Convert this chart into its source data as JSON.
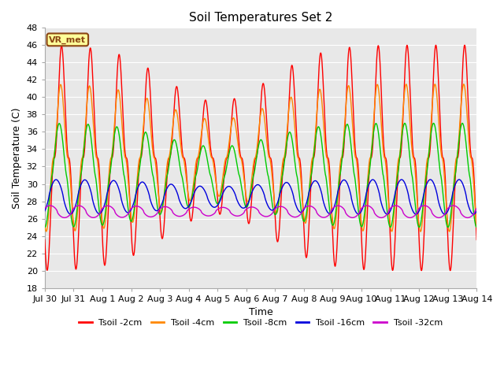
{
  "title": "Soil Temperatures Set 2",
  "xlabel": "Time",
  "ylabel": "Soil Temperature (C)",
  "ylim": [
    18,
    48
  ],
  "yticks": [
    18,
    20,
    22,
    24,
    26,
    28,
    30,
    32,
    34,
    36,
    38,
    40,
    42,
    44,
    46,
    48
  ],
  "fig_bg_color": "#ffffff",
  "plot_bg_color": "#e8e8e8",
  "grid_color": "#ffffff",
  "annotation_text": "VR_met",
  "annotation_bg": "#ffff99",
  "annotation_border": "#8b4513",
  "series": [
    {
      "label": "Tsoil -2cm",
      "color": "#ff0000"
    },
    {
      "label": "Tsoil -4cm",
      "color": "#ff8800"
    },
    {
      "label": "Tsoil -8cm",
      "color": "#00cc00"
    },
    {
      "label": "Tsoil -16cm",
      "color": "#0000dd"
    },
    {
      "label": "Tsoil -32cm",
      "color": "#cc00cc"
    }
  ],
  "xtick_labels": [
    "Jul 30",
    "Jul 31",
    "Aug 1",
    "Aug 2",
    "Aug 3",
    "Aug 4",
    "Aug 5",
    "Aug 6",
    "Aug 7",
    "Aug 8",
    "Aug 9",
    "Aug 10",
    "Aug 11",
    "Aug 12",
    "Aug 13",
    "Aug 14"
  ],
  "linewidth": 1.0
}
